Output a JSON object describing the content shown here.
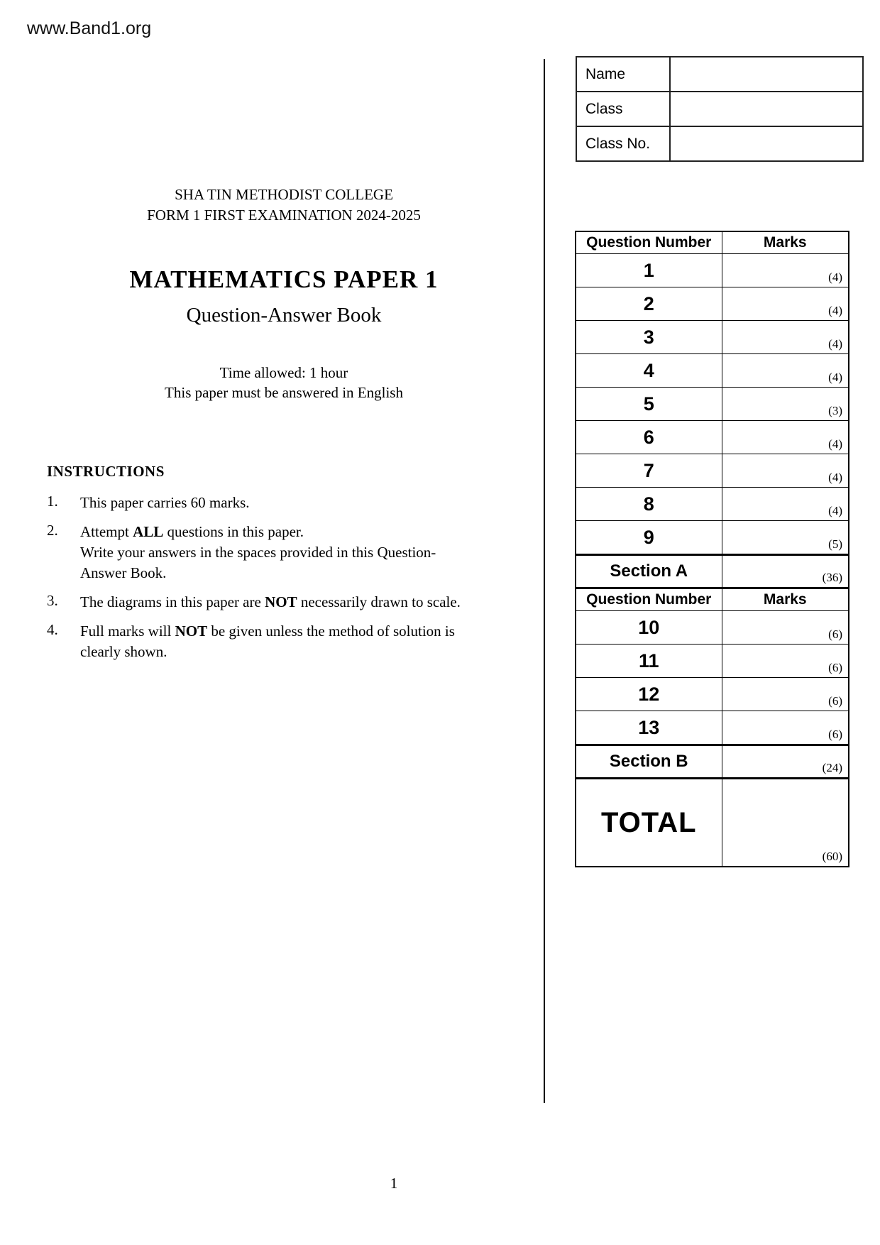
{
  "colors": {
    "text": "#000000",
    "background": "#ffffff",
    "border": "#000000"
  },
  "header": {
    "site_url": "www.Band1.org"
  },
  "student_info": {
    "rows": [
      {
        "label": "Name",
        "value": ""
      },
      {
        "label": "Class",
        "value": ""
      },
      {
        "label": "Class No.",
        "value": ""
      }
    ]
  },
  "title_block": {
    "school": "SHA TIN METHODIST COLLEGE",
    "exam": "FORM 1 FIRST EXAMINATION 2024-2025",
    "paper_title": "MATHEMATICS PAPER 1",
    "subtitle": "Question-Answer Book",
    "time_allowed": "Time allowed: 1 hour",
    "language_note": "This paper must be answered in English"
  },
  "instructions": {
    "heading": "INSTRUCTIONS",
    "items": [
      {
        "num": "1.",
        "lines": [
          [
            "This paper carries 60 marks."
          ]
        ]
      },
      {
        "num": "2.",
        "lines": [
          [
            "Attempt ",
            "ALL",
            " questions in this paper."
          ],
          [
            "Write your answers in the spaces provided in this Question-"
          ],
          [
            "Answer Book."
          ]
        ]
      },
      {
        "num": "3.",
        "lines": [
          [
            "The diagrams in this paper are ",
            "NOT",
            " necessarily drawn to scale."
          ]
        ]
      },
      {
        "num": "4.",
        "lines": [
          [
            "Full marks will ",
            "NOT",
            " be given unless the method of solution is"
          ],
          [
            "clearly shown."
          ]
        ]
      }
    ]
  },
  "marks_table": {
    "header": {
      "question": "Question Number",
      "marks": "Marks"
    },
    "section_a_rows": [
      {
        "question": "1",
        "marks": "(4)"
      },
      {
        "question": "2",
        "marks": "(4)"
      },
      {
        "question": "3",
        "marks": "(4)"
      },
      {
        "question": "4",
        "marks": "(4)"
      },
      {
        "question": "5",
        "marks": "(3)"
      },
      {
        "question": "6",
        "marks": "(4)"
      },
      {
        "question": "7",
        "marks": "(4)"
      },
      {
        "question": "8",
        "marks": "(4)"
      },
      {
        "question": "9",
        "marks": "(5)"
      }
    ],
    "section_a": {
      "label": "Section A",
      "marks": "(36)"
    },
    "section_b_rows": [
      {
        "question": "10",
        "marks": "(6)"
      },
      {
        "question": "11",
        "marks": "(6)"
      },
      {
        "question": "12",
        "marks": "(6)"
      },
      {
        "question": "13",
        "marks": "(6)"
      }
    ],
    "section_b": {
      "label": "Section B",
      "marks": "(24)"
    },
    "total": {
      "label": "TOTAL",
      "marks": "(60)"
    }
  },
  "footer": {
    "page_number": "1"
  }
}
